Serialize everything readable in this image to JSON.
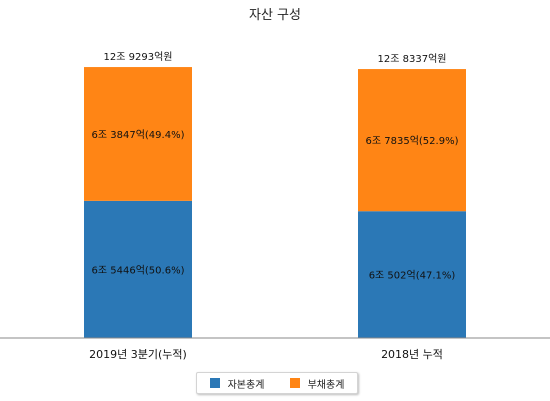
{
  "chart_data": {
    "type": "bar",
    "stacked": true,
    "title": "자산 구성",
    "categories": [
      "2019년 3분기(누적)",
      "2018년 누적"
    ],
    "totals_label": [
      "12조 9293억원",
      "12조 8337억원"
    ],
    "totals": [
      129293,
      128337
    ],
    "series": [
      {
        "name": "자본총계",
        "color": "#2b78b6",
        "values": [
          65446,
          60502
        ],
        "labels": [
          "6조 5446억(50.6%)",
          "6조 502억(47.1%)"
        ]
      },
      {
        "name": "부채총계",
        "color": "#ff8515",
        "values": [
          63847,
          67835
        ],
        "labels": [
          "6조 3847억(49.4%)",
          "6조 7835억(52.9%)"
        ]
      }
    ],
    "ylim": [
      0,
      136000
    ],
    "grid": false,
    "legend_position": "bottom"
  }
}
